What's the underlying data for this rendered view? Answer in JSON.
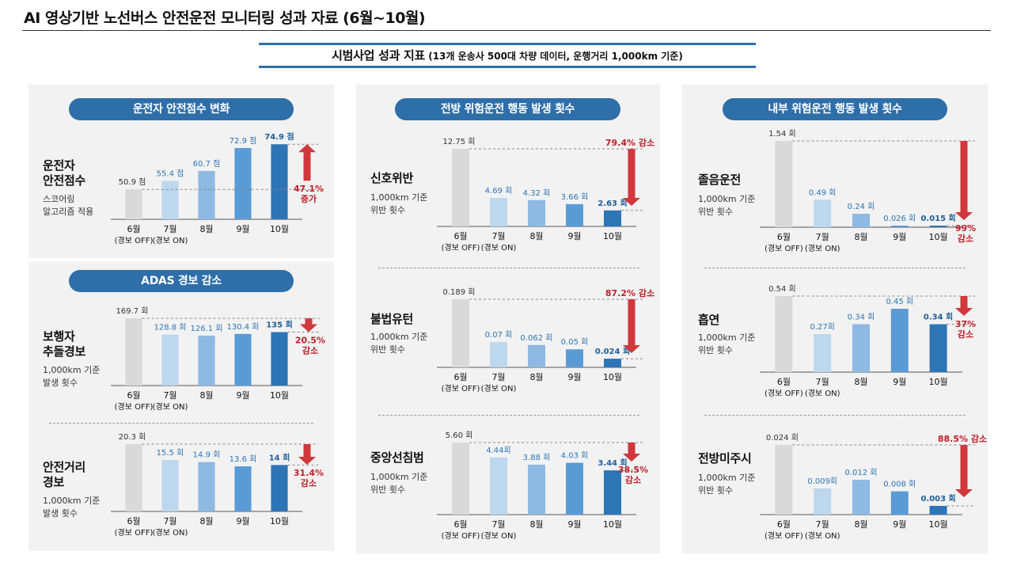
{
  "page": {
    "title": "AI 영상기반 노선버스 안전운전 모니터링 성과 자료 (6월~10월)",
    "subtitle_main": "시범사업 성과 지표",
    "subtitle_sub": " (13개 운송사 500대 차량 데이터, 운행거리 1,000km 기준)"
  },
  "colors": {
    "bar_jun": "#d9d9d9",
    "bar_jul": "#bdd7ee",
    "bar_aug": "#8db9e2",
    "bar_sep": "#5b9bd5",
    "bar_oct": "#2e75b6",
    "arrow_red": "#d0383c",
    "pill_blue": "#2e6ea9",
    "label_blue": "#2e75b6",
    "label_dark_blue": "#1f5f99",
    "change_red": "#c0202a"
  },
  "sections": {
    "driver": "운전자 안전점수 변화",
    "adas": "ADAS 경보 감소",
    "front": "전방 위험운전 행동 발생 횟수",
    "inner": "내부 위험운전 행동 발생 횟수"
  },
  "chart_data": [
    {
      "type": "bar",
      "section": "운전자 안전점수 변화",
      "title": "운전자\n안전점수",
      "note": "스코어링\n알고리즘 적용",
      "categories": [
        "6월",
        "7월",
        "8월",
        "9월",
        "10월"
      ],
      "category_subs": [
        "(경보 OFF)",
        "(경보 ON)",
        "",
        "",
        ""
      ],
      "values": [
        50.9,
        55.4,
        60.7,
        72.9,
        74.9
      ],
      "value_labels": [
        "50.9 점",
        "55.4 점",
        "60.7 점",
        "72.9 점",
        "74.9 점"
      ],
      "ylim": [
        35,
        75
      ],
      "change_label": "47.1%\n증가",
      "direction": "up"
    },
    {
      "type": "bar",
      "section": "ADAS 경보 감소",
      "title": "보행자\n추돌경보",
      "note": "1,000km 기준\n발생 횟수",
      "categories": [
        "6월",
        "7월",
        "8월",
        "9월",
        "10월"
      ],
      "category_subs": [
        "(경보 OFF)",
        "(경보 ON)",
        "",
        "",
        ""
      ],
      "values": [
        169.7,
        128.8,
        126.1,
        130.4,
        135
      ],
      "value_labels": [
        "169.7 회",
        "128.8 회",
        "126.1 회",
        "130.4 회",
        "135 회"
      ],
      "ylim": [
        0,
        170
      ],
      "change_label": "20.5%\n감소",
      "direction": "down"
    },
    {
      "type": "bar",
      "section": "ADAS 경보 감소",
      "title": "안전거리\n경보",
      "note": "1,000km 기준\n발생 횟수",
      "categories": [
        "6월",
        "7월",
        "8월",
        "9월",
        "10월"
      ],
      "category_subs": [
        "(경보 OFF)",
        "(경보 ON)",
        "",
        "",
        ""
      ],
      "values": [
        20.3,
        15.5,
        14.9,
        13.6,
        14
      ],
      "value_labels": [
        "20.3 회",
        "15.5 회",
        "14.9 회",
        "13.6 회",
        "14 회"
      ],
      "ylim": [
        0,
        20.3
      ],
      "change_label": "31.4%\n감소",
      "direction": "down"
    },
    {
      "type": "bar",
      "section": "전방 위험운전 행동 발생 횟수",
      "title": "신호위반",
      "note": "1,000km 기준\n위반 횟수",
      "categories": [
        "6월",
        "7월",
        "8월",
        "9월",
        "10월"
      ],
      "category_subs": [
        "(경보 OFF)",
        "(경보 ON)",
        "",
        "",
        ""
      ],
      "values": [
        12.75,
        4.69,
        4.32,
        3.66,
        2.63
      ],
      "value_labels": [
        "12.75 회",
        "4.69 회",
        "4.32 회",
        "3.66 회",
        "2.63 회"
      ],
      "ylim": [
        0,
        12.75
      ],
      "change_label": "79.4% 감소",
      "direction": "down"
    },
    {
      "type": "bar",
      "section": "전방 위험운전 행동 발생 횟수",
      "title": "불법유턴",
      "note": "1,000km 기준\n위반 횟수",
      "categories": [
        "6월",
        "7월",
        "8월",
        "9월",
        "10월"
      ],
      "category_subs": [
        "(경보 OFF)",
        "(경보 ON)",
        "",
        "",
        ""
      ],
      "values": [
        0.189,
        0.07,
        0.062,
        0.05,
        0.024
      ],
      "value_labels": [
        "0.189 회",
        "0.07 회",
        "0.062 회",
        "0.05 회",
        "0.024 회"
      ],
      "ylim": [
        0,
        0.189
      ],
      "change_label": "87.2% 감소",
      "direction": "down"
    },
    {
      "type": "bar",
      "section": "전방 위험운전 행동 발생 횟수",
      "title": "중앙선침범",
      "note": "1,000km 기준\n위반 횟수",
      "categories": [
        "6월",
        "7월",
        "8월",
        "9월",
        "10월"
      ],
      "category_subs": [
        "(경보 OFF)",
        "(경보 ON)",
        "",
        "",
        ""
      ],
      "values": [
        5.6,
        4.44,
        3.88,
        4.03,
        3.44
      ],
      "value_labels": [
        "5.60 회",
        "4.44회",
        "3.88 회",
        "4.03 회",
        "3.44 회"
      ],
      "ylim": [
        0,
        5.6
      ],
      "change_label": "38.5%\n감소",
      "direction": "down"
    },
    {
      "type": "bar",
      "section": "내부 위험운전 행동 발생 횟수",
      "title": "졸음운전",
      "note": "1,000km 기준\n위반 횟수",
      "categories": [
        "6월",
        "7월",
        "8월",
        "9월",
        "10월"
      ],
      "category_subs": [
        "(경보 OFF)",
        "(경보 ON)",
        "",
        "",
        ""
      ],
      "values": [
        1.54,
        0.49,
        0.24,
        0.026,
        0.015
      ],
      "value_labels": [
        "1.54 회",
        "0.49 회",
        "0.24 회",
        "0.026 회",
        "0.015 회"
      ],
      "ylim": [
        0,
        1.54
      ],
      "change_label": "99%\n감소",
      "direction": "down"
    },
    {
      "type": "bar",
      "section": "내부 위험운전 행동 발생 횟수",
      "title": "흡연",
      "note": "1,000km 기준\n위반 횟수",
      "categories": [
        "6월",
        "7월",
        "8월",
        "9월",
        "10월"
      ],
      "category_subs": [
        "(경보 OFF)",
        "(경보 ON)",
        "",
        "",
        ""
      ],
      "values": [
        0.54,
        0.27,
        0.34,
        0.45,
        0.34
      ],
      "value_labels": [
        "0.54 회",
        "0.27회",
        "0.34 회",
        "0.45 회",
        "0.34 회"
      ],
      "ylim": [
        0,
        0.54
      ],
      "change_label": "37%\n감소",
      "direction": "down"
    },
    {
      "type": "bar",
      "section": "내부 위험운전 행동 발생 횟수",
      "title": "전방미주시",
      "note": "1,000km 기준\n위반 횟수",
      "categories": [
        "6월",
        "7월",
        "8월",
        "9월",
        "10월"
      ],
      "category_subs": [
        "(경보 OFF)",
        "(경보 ON)",
        "",
        "",
        ""
      ],
      "values": [
        0.024,
        0.009,
        0.012,
        0.008,
        0.003
      ],
      "value_labels": [
        "0.024 회",
        "0.009회",
        "0.012 회",
        "0.008 회",
        "0.003 회"
      ],
      "ylim": [
        0,
        0.024
      ],
      "change_label": "88.5% 감소",
      "direction": "down"
    }
  ]
}
